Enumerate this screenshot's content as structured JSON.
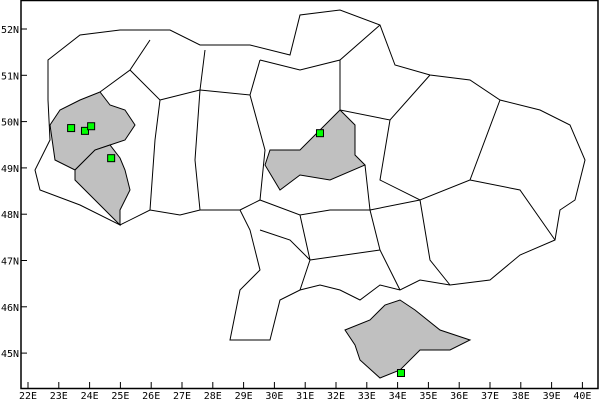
{
  "map": {
    "x_ticks": [
      "22E",
      "23E",
      "24E",
      "25E",
      "26E",
      "27E",
      "28E",
      "29E",
      "30E",
      "31E",
      "32E",
      "33E",
      "34E",
      "35E",
      "36E",
      "37E",
      "38E",
      "39E",
      "40E"
    ],
    "y_ticks": [
      "52N",
      "51N",
      "50N",
      "49N",
      "48N",
      "47N",
      "46N",
      "45N"
    ],
    "colors": {
      "highlight_fill": "#c0c0c0",
      "region_fill": "#ffffff",
      "border": "#000000",
      "marker": "#00ff00"
    },
    "highlighted_regions": [
      "Lviv",
      "Ivano-Frankivsk",
      "Poltava",
      "Crimea"
    ],
    "markers": [
      {
        "lon": 23.4,
        "lat": 49.86
      },
      {
        "lon": 23.85,
        "lat": 49.8
      },
      {
        "lon": 24.05,
        "lat": 49.9
      },
      {
        "lon": 24.7,
        "lat": 49.21
      },
      {
        "lon": 31.48,
        "lat": 49.75
      },
      {
        "lon": 34.11,
        "lat": 44.57
      }
    ]
  }
}
